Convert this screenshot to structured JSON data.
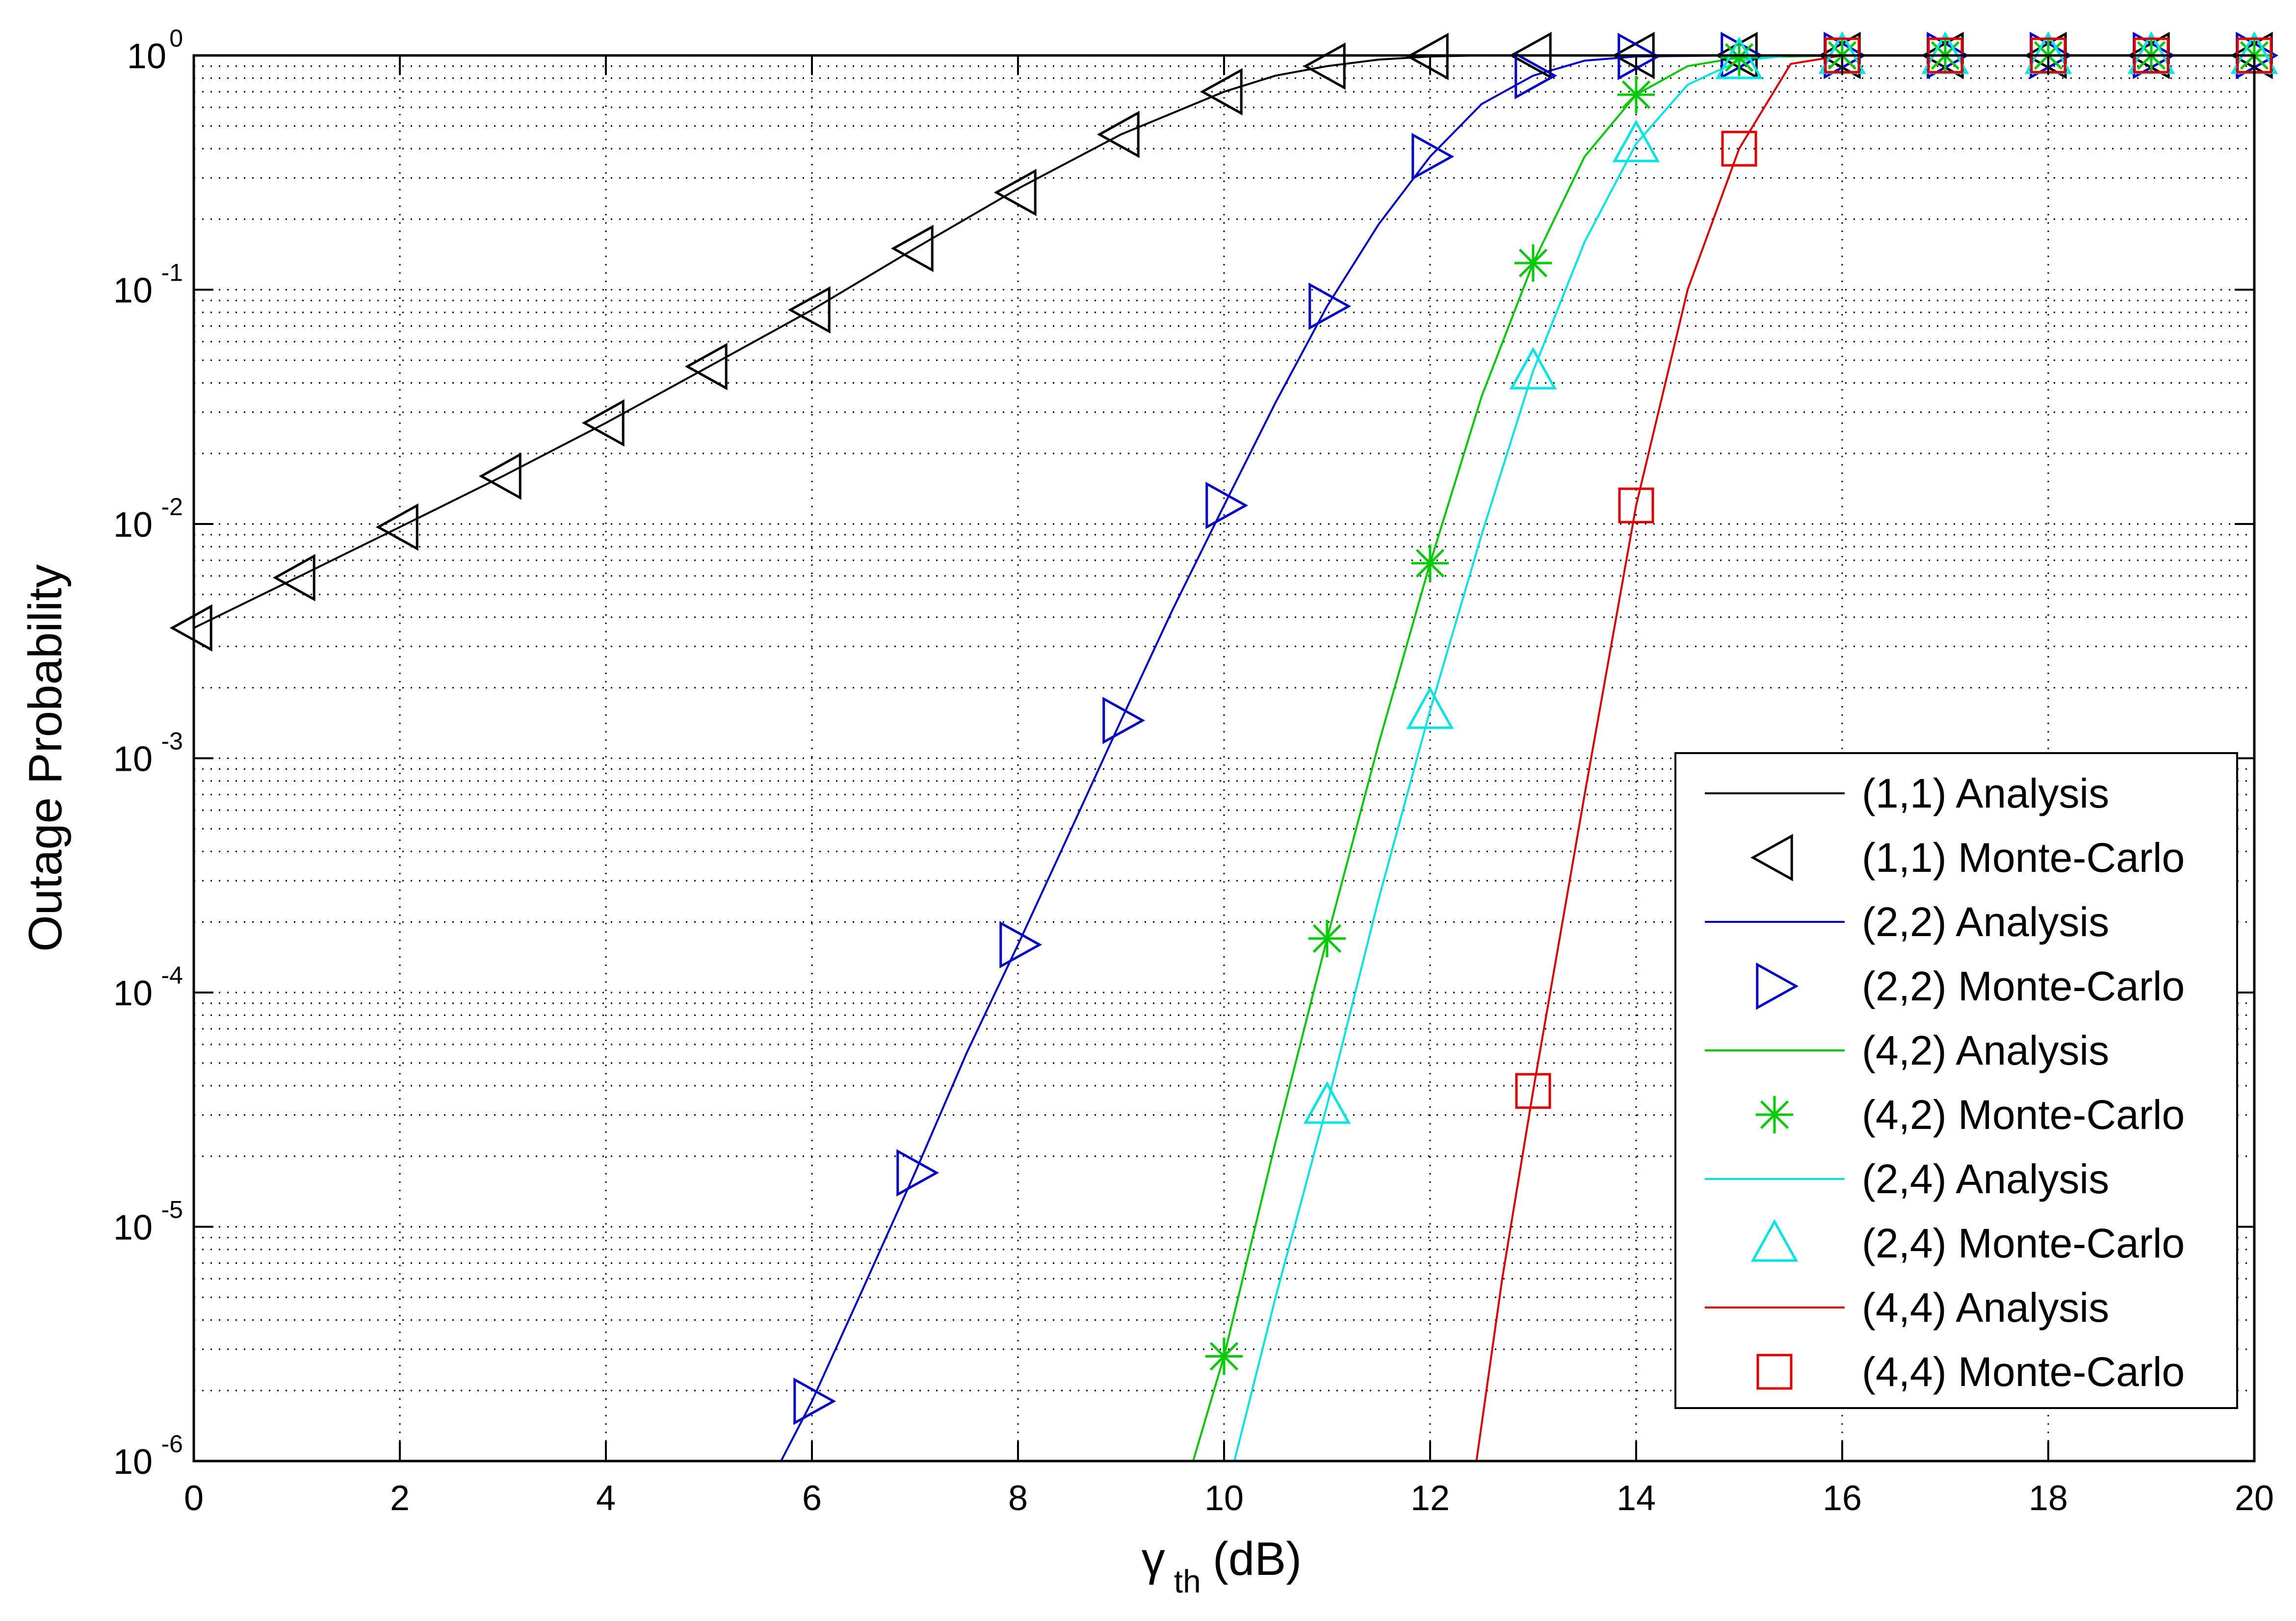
{
  "chart_data": {
    "type": "line",
    "title": "",
    "xlabel": "γ",
    "xlabel_sub": "th",
    "xlabel_unit": "(dB)",
    "ylabel": "Outage Probability",
    "xlim": [
      0,
      20
    ],
    "ylim": [
      1e-06,
      1
    ],
    "yscale": "log",
    "grid": true,
    "legend_position": "bottom-right",
    "x_ticks": [
      "0",
      "2",
      "4",
      "6",
      "8",
      "10",
      "12",
      "14",
      "16",
      "18",
      "20"
    ],
    "y_ticks": [
      {
        "base": "10",
        "exp": "0"
      },
      {
        "base": "10",
        "exp": "-1"
      },
      {
        "base": "10",
        "exp": "-2"
      },
      {
        "base": "10",
        "exp": "-3"
      },
      {
        "base": "10",
        "exp": "-4"
      },
      {
        "base": "10",
        "exp": "-5"
      },
      {
        "base": "10",
        "exp": "-6"
      }
    ],
    "series": [
      {
        "name": "(1,1) Analysis",
        "kind": "line",
        "color": "#000000",
        "x": [
          0,
          1,
          2,
          3,
          4,
          5,
          6,
          7,
          8,
          9,
          10,
          10.5,
          11,
          11.5,
          12,
          12.5,
          13,
          14,
          15,
          16,
          17,
          18,
          19,
          20
        ],
        "y": [
          0.0036,
          0.0059,
          0.0097,
          0.016,
          0.027,
          0.047,
          0.082,
          0.15,
          0.27,
          0.46,
          0.7,
          0.82,
          0.9,
          0.96,
          0.99,
          1.0,
          1.0,
          1.0,
          1.0,
          1.0,
          1.0,
          1.0,
          1.0,
          1.0
        ]
      },
      {
        "name": "(1,1) Monte-Carlo",
        "kind": "marker",
        "marker": "triangle-left",
        "color": "#000000",
        "x": [
          0,
          1,
          2,
          3,
          4,
          5,
          6,
          7,
          8,
          9,
          10,
          11,
          12,
          13,
          14,
          15,
          16,
          17,
          18,
          19,
          20
        ],
        "y": [
          0.0036,
          0.0059,
          0.0097,
          0.016,
          0.027,
          0.047,
          0.082,
          0.15,
          0.26,
          0.46,
          0.7,
          0.9,
          0.99,
          1.0,
          1.0,
          1.0,
          1.0,
          1.0,
          1.0,
          1.0,
          1.0
        ]
      },
      {
        "name": "(2,2) Analysis",
        "kind": "line",
        "color": "#0000cc",
        "x": [
          5.7,
          6,
          6.5,
          7,
          7.5,
          8,
          8.5,
          9,
          9.5,
          10,
          10.5,
          11,
          11.5,
          12,
          12.5,
          13,
          13.5,
          14,
          15,
          16,
          17,
          18,
          19,
          20
        ],
        "y": [
          1e-06,
          1.8e-06,
          5.5e-06,
          1.7e-05,
          5.5e-05,
          0.00016,
          0.00048,
          0.00145,
          0.0043,
          0.012,
          0.033,
          0.085,
          0.19,
          0.37,
          0.62,
          0.82,
          0.95,
          0.99,
          1.0,
          1.0,
          1.0,
          1.0,
          1.0,
          1.0
        ]
      },
      {
        "name": "(2,2) Monte-Carlo",
        "kind": "marker",
        "marker": "triangle-right",
        "color": "#0000cc",
        "x": [
          6,
          7,
          8,
          9,
          10,
          11,
          12,
          13,
          14,
          15,
          16,
          17,
          18,
          19,
          20
        ],
        "y": [
          1.8e-06,
          1.7e-05,
          0.00016,
          0.00145,
          0.012,
          0.085,
          0.37,
          0.82,
          0.99,
          1.0,
          1.0,
          1.0,
          1.0,
          1.0,
          1.0
        ]
      },
      {
        "name": "(4,2) Analysis",
        "kind": "line",
        "color": "#00cc00",
        "x": [
          9.7,
          10,
          10.5,
          11,
          11.5,
          12,
          12.5,
          13,
          13.5,
          14,
          14.5,
          15,
          16,
          17,
          18,
          19,
          20
        ],
        "y": [
          1e-06,
          2.8e-06,
          2.3e-05,
          0.00017,
          0.00115,
          0.0068,
          0.035,
          0.13,
          0.37,
          0.68,
          0.9,
          0.98,
          1.0,
          1.0,
          1.0,
          1.0,
          1.0
        ]
      },
      {
        "name": "(4,2) Monte-Carlo",
        "kind": "marker",
        "marker": "asterisk",
        "color": "#00cc00",
        "x": [
          10,
          11,
          12,
          13,
          14,
          15,
          16,
          17,
          18,
          19,
          20
        ],
        "y": [
          2.8e-06,
          0.00017,
          0.0068,
          0.13,
          0.68,
          0.98,
          1.0,
          1.0,
          1.0,
          1.0,
          1.0
        ]
      },
      {
        "name": "(2,4) Analysis",
        "kind": "line",
        "color": "#00e5e5",
        "x": [
          10.1,
          10.5,
          11,
          11.5,
          12,
          12.5,
          13,
          13.5,
          14,
          14.5,
          15,
          15.5,
          16,
          17,
          18,
          19,
          20
        ],
        "y": [
          1e-06,
          5e-06,
          3.3e-05,
          0.00025,
          0.0016,
          0.009,
          0.045,
          0.16,
          0.42,
          0.75,
          0.95,
          1.0,
          1.0,
          1.0,
          1.0,
          1.0,
          1.0
        ]
      },
      {
        "name": "(2,4) Monte-Carlo",
        "kind": "marker",
        "marker": "triangle-up",
        "color": "#00e5e5",
        "x": [
          11,
          12,
          13,
          14,
          15,
          16,
          17,
          18,
          19,
          20
        ],
        "y": [
          3.3e-05,
          0.0016,
          0.045,
          0.42,
          0.95,
          1.0,
          1.0,
          1.0,
          1.0,
          1.0
        ]
      },
      {
        "name": "(4,4) Analysis",
        "kind": "line",
        "color": "#e00000",
        "x": [
          12.45,
          12.7,
          13,
          13.5,
          14,
          14.5,
          15,
          15.5,
          16,
          17,
          18,
          19,
          20
        ],
        "y": [
          1e-06,
          6e-06,
          3.8e-05,
          0.0007,
          0.012,
          0.1,
          0.4,
          0.92,
          1.0,
          1.0,
          1.0,
          1.0,
          1.0
        ]
      },
      {
        "name": "(4,4) Monte-Carlo",
        "kind": "marker",
        "marker": "square",
        "color": "#e00000",
        "x": [
          13,
          14,
          15,
          16,
          17,
          18,
          19,
          20
        ],
        "y": [
          3.8e-05,
          0.012,
          0.4,
          1.0,
          1.0,
          1.0,
          1.0,
          1.0
        ]
      }
    ]
  }
}
